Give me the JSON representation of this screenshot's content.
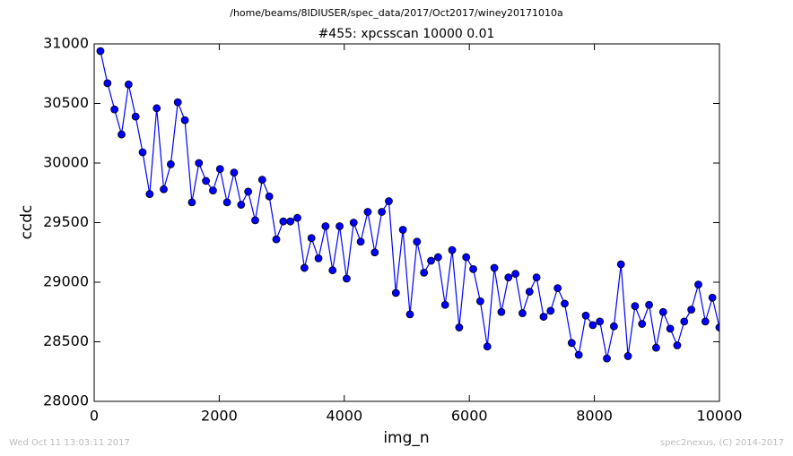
{
  "chart_data": {
    "type": "line",
    "suptitle": "/home/beams/8IDIUSER/spec_data/2017/Oct2017/winey20171010a",
    "title": "#455: xpcsscan 10000 0.01",
    "xlabel": "img_n",
    "ylabel": "ccdc",
    "footer_left": "Wed Oct 11 13:03:11 2017",
    "footer_right": "spec2nexus, (C) 2014-2017",
    "x": [
      100,
      212.5,
      325,
      437.5,
      550,
      662.5,
      775,
      887.5,
      1000,
      1112.5,
      1225,
      1337.5,
      1450,
      1562.5,
      1675,
      1787.5,
      1900,
      2012.5,
      2125,
      2237.5,
      2350,
      2462.5,
      2575,
      2687.5,
      2800,
      2912.5,
      3025,
      3137.5,
      3250,
      3362.5,
      3475,
      3587.5,
      3700,
      3812.5,
      3925,
      4037.5,
      4150,
      4262.5,
      4375,
      4487.5,
      4600,
      4712.5,
      4825,
      4937.5,
      5050,
      5162.5,
      5275,
      5387.5,
      5500,
      5612.5,
      5725,
      5837.5,
      5950,
      6062.5,
      6175,
      6287.5,
      6400,
      6512.5,
      6625,
      6737.5,
      6850,
      6962.5,
      7075,
      7187.5,
      7300,
      7412.5,
      7525,
      7637.5,
      7750,
      7862.5,
      7975,
      8087.5,
      8200,
      8312.5,
      8425,
      8537.5,
      8650,
      8762.5,
      8875,
      8987.5,
      9100,
      9212.5,
      9325,
      9437.5,
      9550,
      9662.5,
      9775,
      9887.5,
      10000
    ],
    "series": [
      {
        "color": "#0000ff",
        "values": [
          30940,
          30670,
          30450,
          30240,
          30660,
          30390,
          30090,
          29740,
          30460,
          29780,
          29990,
          30510,
          30360,
          29670,
          30000,
          29850,
          29770,
          29950,
          29670,
          29920,
          29650,
          29760,
          29520,
          29860,
          29720,
          29360,
          29510,
          29510,
          29540,
          29120,
          29370,
          29200,
          29470,
          29100,
          29470,
          29030,
          29500,
          29340,
          29590,
          29250,
          29590,
          29680,
          28910,
          29440,
          28730,
          29340,
          29080,
          29180,
          29210,
          28810,
          29270,
          28620,
          29210,
          29110,
          28840,
          28460,
          29120,
          28750,
          29040,
          29070,
          28740,
          28920,
          29040,
          28710,
          28760,
          28950,
          28820,
          28490,
          28390,
          28720,
          28640,
          28670,
          28360,
          28630,
          29150,
          28380,
          28800,
          28650,
          28810,
          28450,
          28750,
          28610,
          28470,
          28670,
          28770,
          28980,
          28670,
          28870,
          28620
        ]
      }
    ],
    "xlim": [
      0,
      10000
    ],
    "xticks": [
      0,
      2000,
      4000,
      6000,
      8000,
      10000
    ],
    "ylim": [
      28000,
      31000
    ],
    "yticks": [
      28000,
      28500,
      29000,
      29500,
      30000,
      30500,
      31000
    ],
    "grid": false
  }
}
